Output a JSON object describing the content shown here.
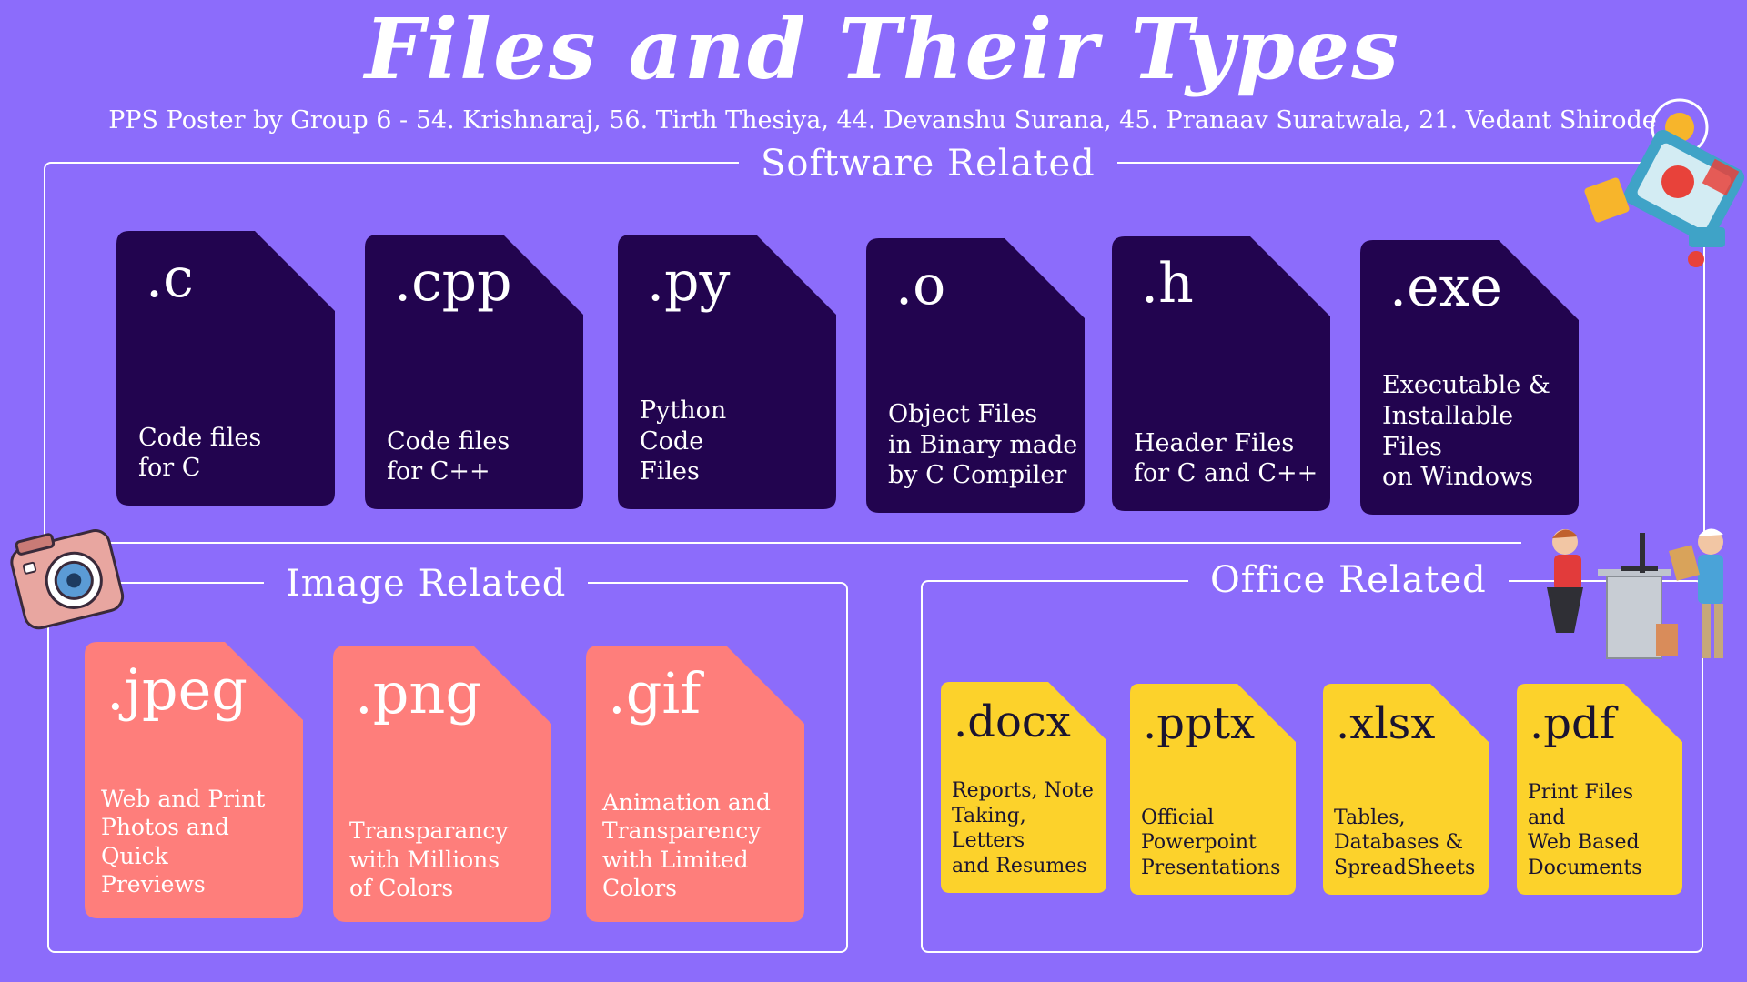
{
  "title": "Files and Their Types",
  "subtitle": "PPS Poster by Group 6 - 54. Krishnaraj, 56. Tirth Thesiya, 44. Devanshu Surana, 45. Pranaav Suratwala, 21. Vedant Shirode",
  "colors": {
    "background": "#8c6cfb",
    "software_card": "#22044f",
    "image_card": "#fe7e7b",
    "office_card": "#fcd22b"
  },
  "software": {
    "label": "Software Related",
    "cards": [
      {
        "ext": ".c",
        "desc": "Code files\nfor C"
      },
      {
        "ext": ".cpp",
        "desc": "Code files\nfor C++"
      },
      {
        "ext": ".py",
        "desc": "Python\nCode\nFiles"
      },
      {
        "ext": ".o",
        "desc": "Object Files\nin Binary made\nby C Compiler"
      },
      {
        "ext": ".h",
        "desc": "Header Files\nfor C and C++"
      },
      {
        "ext": ".exe",
        "desc": "Executable &\nInstallable Files\non Windows"
      }
    ]
  },
  "image": {
    "label": "Image Related",
    "cards": [
      {
        "ext": ".jpeg",
        "desc": "Web and Print\nPhotos and Quick\nPreviews"
      },
      {
        "ext": ".png",
        "desc": "Transparancy\nwith Millions\nof Colors"
      },
      {
        "ext": ".gif",
        "desc": "Animation and\nTransparency\nwith Limited\nColors"
      }
    ]
  },
  "office": {
    "label": "Office Related",
    "cards": [
      {
        "ext": ".docx",
        "desc": "Reports, Note\nTaking, Letters\nand Resumes"
      },
      {
        "ext": ".pptx",
        "desc": "Official\nPowerpoint\nPresentations"
      },
      {
        "ext": ".xlsx",
        "desc": "Tables,\nDatabases &\nSpreadSheets"
      },
      {
        "ext": ".pdf",
        "desc": "Print Files and\nWeb Based\nDocuments"
      }
    ]
  },
  "icons": [
    "design-tools-illustration-icon",
    "camera-icon",
    "office-workers-illustration-icon"
  ]
}
